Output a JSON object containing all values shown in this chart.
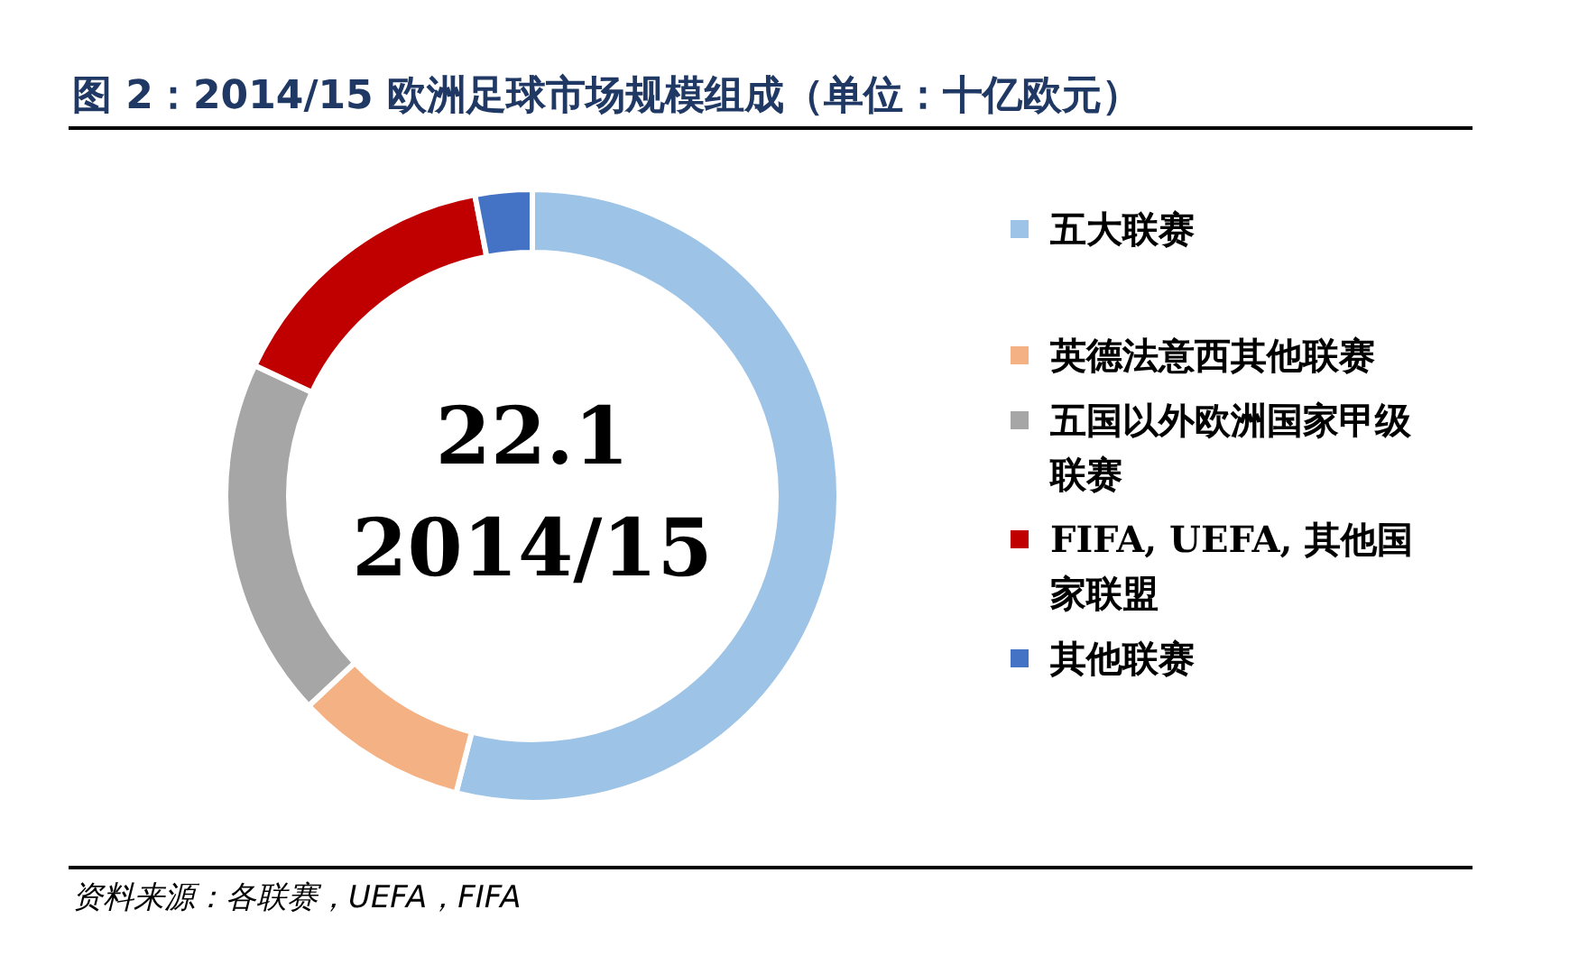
{
  "chart_data": {
    "type": "donut",
    "title": "图 2：2014/15 欧洲足球市场规模组成（单位：十亿欧元）",
    "categories": [
      "五大联赛",
      "英德法意西其他联赛",
      "五国以外欧洲国家甲级联赛",
      "FIFA, UEFA, 其他国家联盟",
      "其他联赛"
    ],
    "values": [
      54,
      9,
      19,
      15,
      3
    ],
    "colors": [
      "#9dc3e6",
      "#f4b183",
      "#a6a6a6",
      "#c00000",
      "#4472c4"
    ],
    "legend": "right",
    "annotations": [
      "22.1",
      "2014/15",
      "资料来源：各联赛，UEFA，FIFA"
    ]
  }
}
